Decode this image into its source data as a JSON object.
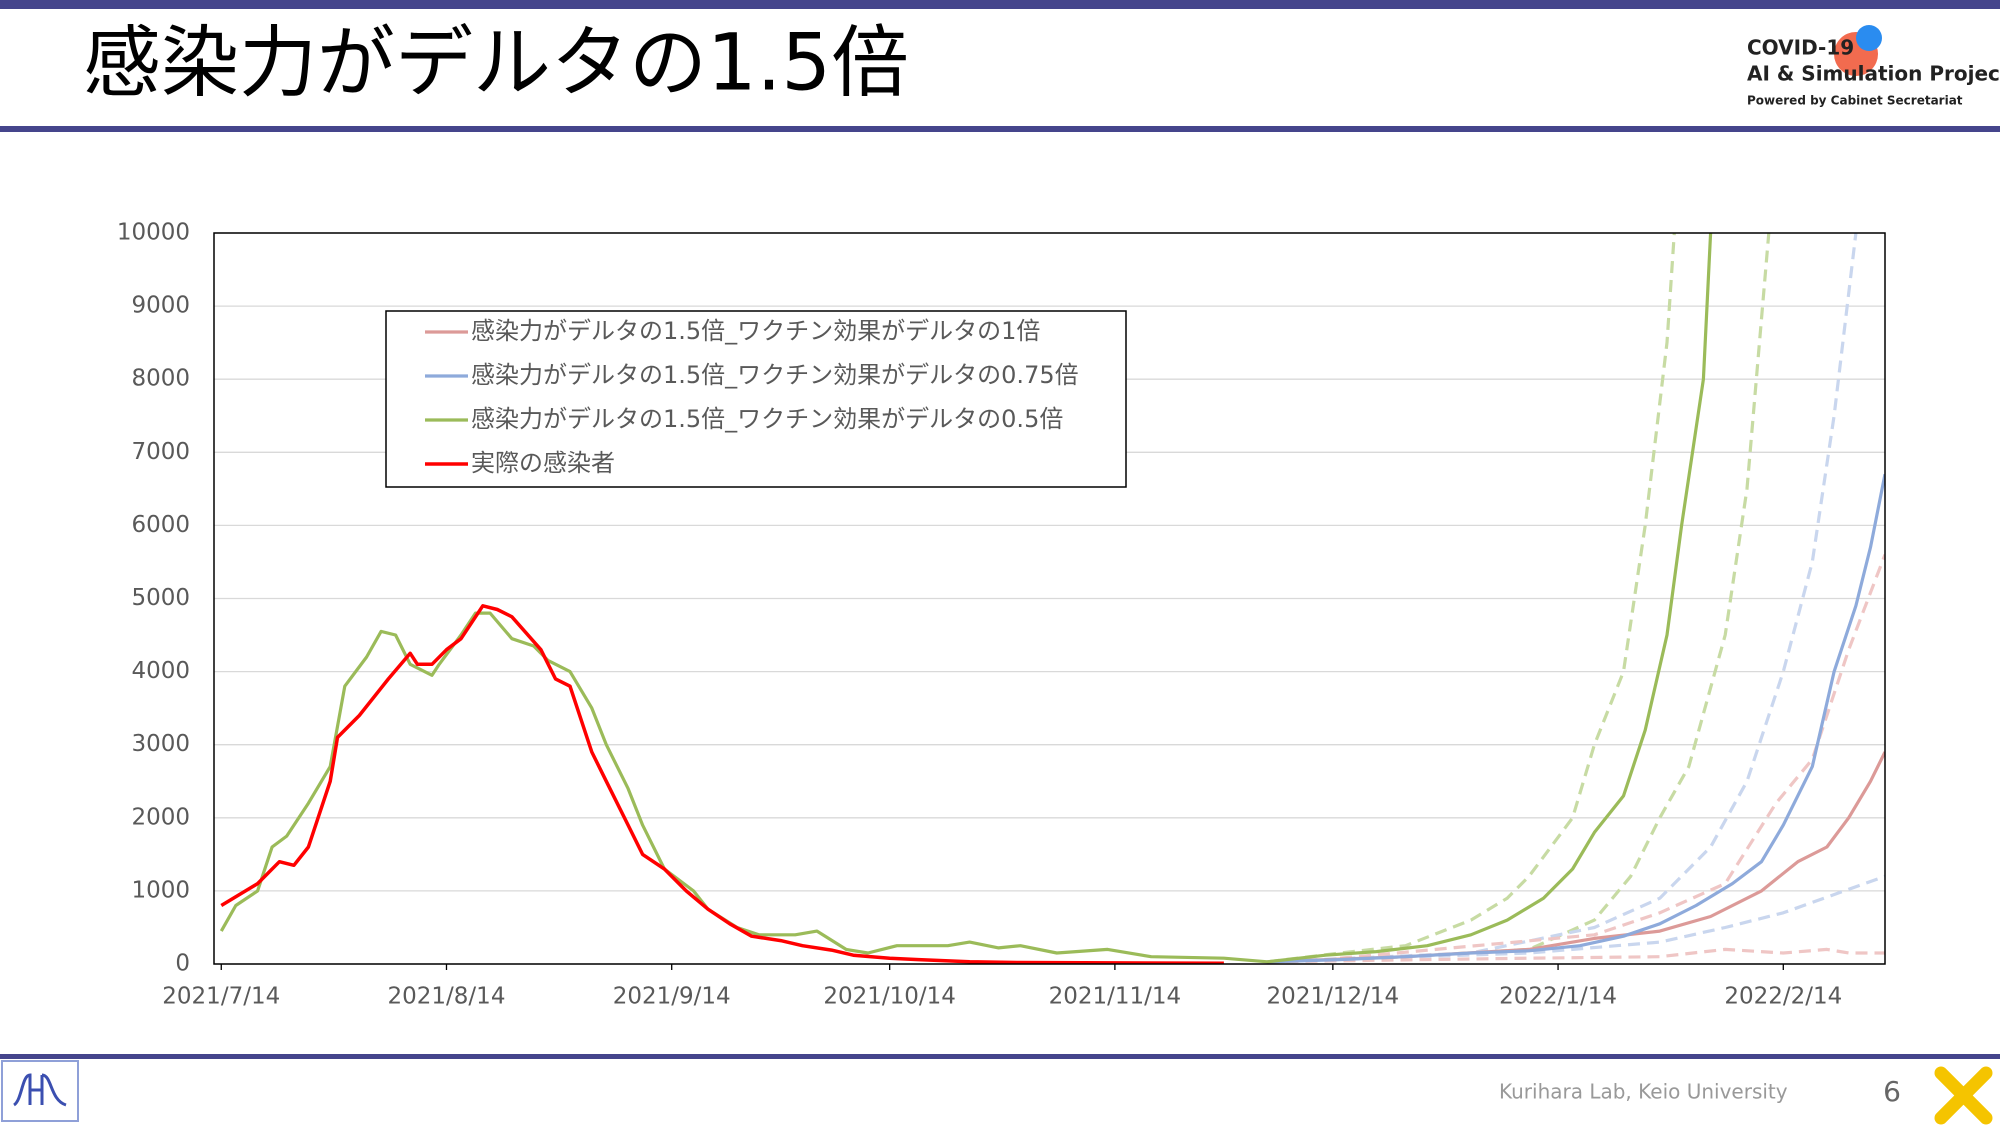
{
  "header": {
    "title": "感染力がデルタの1.5倍",
    "logo": [
      "COVID-19",
      "AI & Simulation Project",
      "Powered by Cabinet Secretariat"
    ]
  },
  "chart_data": {
    "type": "line",
    "xlim": [
      "2021/7/13",
      "2022/2/28"
    ],
    "xticks": [
      "2021/7/14",
      "2021/8/14",
      "2021/9/14",
      "2021/10/14",
      "2021/11/14",
      "2021/12/14",
      "2022/1/14",
      "2022/2/14"
    ],
    "ylim": [
      0,
      10000
    ],
    "yticks": [
      0,
      1000,
      2000,
      3000,
      4000,
      5000,
      6000,
      7000,
      8000,
      9000,
      10000
    ],
    "grid": true,
    "series": [
      {
        "name": "感染力がデルタの1.5倍_ワクチン効果がデルタの1倍",
        "color": "#dc9a98",
        "x": [
          "2021/12/5",
          "2021/12/24",
          "2022/1/10",
          "2022/1/19",
          "2022/1/28",
          "2022/2/4",
          "2022/2/11",
          "2022/2/16",
          "2022/2/20",
          "2022/2/23",
          "2022/2/26",
          "2022/2/28"
        ],
        "values": [
          30,
          100,
          200,
          350,
          450,
          650,
          1000,
          1400,
          1600,
          2000,
          2500,
          2900
        ]
      },
      {
        "name": "感染力がデルタの1.5倍_ワクチン効果がデルタの0.75倍",
        "color": "#8eaadb",
        "x": [
          "2021/12/5",
          "2021/12/15",
          "2021/12/24",
          "2022/1/2",
          "2022/1/10",
          "2022/1/17",
          "2022/1/23",
          "2022/1/28",
          "2022/2/2",
          "2022/2/7",
          "2022/2/11",
          "2022/2/14",
          "2022/2/18",
          "2022/2/21",
          "2022/2/24",
          "2022/2/26",
          "2022/2/28"
        ],
        "values": [
          30,
          60,
          100,
          150,
          180,
          250,
          380,
          550,
          800,
          1100,
          1400,
          1900,
          2700,
          4000,
          4900,
          5700,
          6700
        ]
      },
      {
        "name": "感染力がデルタの1.5倍_ワクチン効果がデルタの0.5倍",
        "color": "#9bbb59",
        "x": [
          "2021/7/14",
          "2021/7/16",
          "2021/7/19",
          "2021/7/21",
          "2021/7/23",
          "2021/7/26",
          "2021/7/29",
          "2021/7/31",
          "2021/8/3",
          "2021/8/5",
          "2021/8/7",
          "2021/8/9",
          "2021/8/12",
          "2021/8/13",
          "2021/8/16",
          "2021/8/18",
          "2021/8/20",
          "2021/8/23",
          "2021/8/26",
          "2021/8/28",
          "2021/8/31",
          "2021/9/3",
          "2021/9/5",
          "2021/9/8",
          "2021/9/10",
          "2021/9/13",
          "2021/9/17",
          "2021/9/19",
          "2021/9/23",
          "2021/9/26",
          "2021/10/1",
          "2021/10/4",
          "2021/10/8",
          "2021/10/11",
          "2021/10/15",
          "2021/10/22",
          "2021/10/25",
          "2021/10/29",
          "2021/11/1",
          "2021/11/6",
          "2021/11/13",
          "2021/11/19",
          "2021/11/29",
          "2021/12/5",
          "2021/12/13",
          "2021/12/20",
          "2021/12/27",
          "2022/1/2",
          "2022/1/7",
          "2022/1/12",
          "2022/1/16",
          "2022/1/19",
          "2022/1/23",
          "2022/1/26",
          "2022/1/29",
          "2022/1/31",
          "2022/2/3",
          "2022/2/4"
        ],
        "values": [
          450,
          800,
          1000,
          1600,
          1750,
          2200,
          2700,
          3800,
          4200,
          4550,
          4500,
          4100,
          3950,
          4100,
          4500,
          4800,
          4800,
          4450,
          4350,
          4150,
          4000,
          3500,
          3000,
          2400,
          1900,
          1300,
          1000,
          750,
          500,
          400,
          400,
          450,
          200,
          150,
          250,
          250,
          300,
          220,
          250,
          150,
          200,
          100,
          80,
          30,
          120,
          170,
          250,
          400,
          600,
          900,
          1300,
          1800,
          2300,
          3200,
          4500,
          6000,
          8000,
          10000
        ]
      },
      {
        "name": "実際の感染者",
        "color": "#ff0000",
        "width": 3.5,
        "x": [
          "2021/7/14",
          "2021/7/19",
          "2021/7/22",
          "2021/7/24",
          "2021/7/26",
          "2021/7/29",
          "2021/7/30",
          "2021/8/2",
          "2021/8/6",
          "2021/8/9",
          "2021/8/10",
          "2021/8/12",
          "2021/8/14",
          "2021/8/16",
          "2021/8/19",
          "2021/8/21",
          "2021/8/23",
          "2021/8/27",
          "2021/8/29",
          "2021/8/31",
          "2021/9/3",
          "2021/9/5",
          "2021/9/8",
          "2021/9/10",
          "2021/9/13",
          "2021/9/16",
          "2021/9/19",
          "2021/9/22",
          "2021/9/25",
          "2021/9/29",
          "2021/10/2",
          "2021/10/6",
          "2021/10/9",
          "2021/10/14",
          "2021/10/18",
          "2021/10/25",
          "2021/11/1",
          "2021/11/14",
          "2021/11/29"
        ],
        "values": [
          800,
          1100,
          1400,
          1350,
          1600,
          2500,
          3100,
          3400,
          3900,
          4250,
          4100,
          4100,
          4300,
          4450,
          4900,
          4850,
          4750,
          4300,
          3900,
          3800,
          2900,
          2500,
          1900,
          1500,
          1300,
          1000,
          750,
          550,
          380,
          320,
          250,
          190,
          120,
          80,
          60,
          30,
          20,
          15,
          10
        ]
      },
      {
        "color": "#c7dba3",
        "dashed": true,
        "x": [
          "2021/12/5",
          "2021/12/15",
          "2021/12/24",
          "2022/1/2",
          "2022/1/7",
          "2022/1/10",
          "2022/1/16",
          "2022/1/19",
          "2022/1/23",
          "2022/1/26",
          "2022/1/29",
          "2022/1/30"
        ],
        "values": [
          30,
          150,
          250,
          600,
          900,
          1200,
          2000,
          3000,
          4000,
          6000,
          8500,
          10000
        ]
      },
      {
        "color": "#c7dba3",
        "dashed": true,
        "x": [
          "2021/12/5",
          "2021/12/24",
          "2022/1/10",
          "2022/1/19",
          "2022/1/24",
          "2022/1/28",
          "2022/2/1",
          "2022/2/6",
          "2022/2/9",
          "2022/2/12"
        ],
        "values": [
          30,
          100,
          200,
          600,
          1200,
          2000,
          2700,
          4500,
          6500,
          10000
        ]
      },
      {
        "color": "#c9d6ee",
        "dashed": true,
        "x": [
          "2021/12/5",
          "2022/1/2",
          "2022/1/19",
          "2022/1/28",
          "2022/2/4",
          "2022/2/9",
          "2022/2/14",
          "2022/2/18",
          "2022/2/21",
          "2022/2/24"
        ],
        "values": [
          30,
          150,
          500,
          900,
          1600,
          2500,
          4000,
          5500,
          7500,
          10000
        ]
      },
      {
        "color": "#c9d6ee",
        "dashed": true,
        "x": [
          "2021/12/5",
          "2022/1/10",
          "2022/1/28",
          "2022/2/6",
          "2022/2/14",
          "2022/2/28"
        ],
        "values": [
          30,
          150,
          300,
          500,
          700,
          1200
        ]
      },
      {
        "color": "#efc6c5",
        "dashed": true,
        "x": [
          "2021/12/15",
          "2022/1/19",
          "2022/1/28",
          "2022/2/6",
          "2022/2/13",
          "2022/2/18",
          "2022/2/23",
          "2022/2/28"
        ],
        "values": [
          80,
          400,
          700,
          1100,
          2200,
          2800,
          4300,
          5600
        ]
      },
      {
        "color": "#efc6c5",
        "dashed": true,
        "x": [
          "2021/12/5",
          "2022/1/10",
          "2022/1/28",
          "2022/2/6",
          "2022/2/14",
          "2022/2/20",
          "2022/2/23",
          "2022/2/28"
        ],
        "values": [
          30,
          80,
          100,
          200,
          150,
          200,
          150,
          150
        ]
      }
    ]
  },
  "footer": {
    "credit": "Kurihara Lab, Keio University",
    "page": 6
  }
}
